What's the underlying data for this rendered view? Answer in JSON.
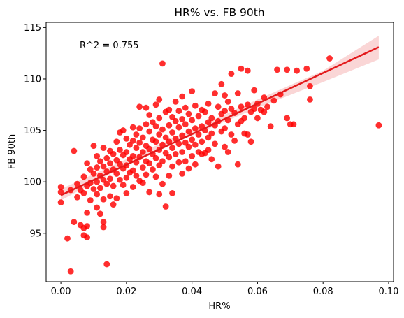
{
  "chart_data": {
    "type": "scatter",
    "title": "HR% vs. FB 90th",
    "xlabel": "HR%",
    "ylabel": "FB 90th",
    "annotation": "R^2 = 0.755",
    "xlim": [
      -0.0045,
      0.1015
    ],
    "ylim": [
      90.3,
      115.5
    ],
    "xticks": [
      0.0,
      0.02,
      0.04,
      0.06,
      0.08,
      0.1
    ],
    "xtick_labels": [
      "0.00",
      "0.02",
      "0.04",
      "0.06",
      "0.08",
      "0.10"
    ],
    "yticks": [
      95,
      100,
      105,
      110,
      115
    ],
    "ytick_labels": [
      "95",
      "100",
      "105",
      "110",
      "115"
    ],
    "grid": false,
    "point_color": "#ff0000",
    "regression_line": {
      "x": [
        0.0,
        0.097
      ],
      "y": [
        98.7,
        113.1
      ],
      "color": "#e31a1c"
    },
    "confidence_band": {
      "x": [
        0.0,
        0.02,
        0.04,
        0.06,
        0.08,
        0.097
      ],
      "lower": [
        98.2,
        101.6,
        104.5,
        107.2,
        109.7,
        111.9
      ],
      "upper": [
        99.3,
        102.2,
        105.1,
        108.0,
        110.8,
        114.2
      ]
    },
    "points": [
      [
        0.0,
        99.5
      ],
      [
        0.0,
        99.0
      ],
      [
        0.0,
        98.0
      ],
      [
        0.002,
        94.5
      ],
      [
        0.003,
        91.3
      ],
      [
        0.003,
        99.2
      ],
      [
        0.004,
        103.0
      ],
      [
        0.004,
        96.1
      ],
      [
        0.005,
        99.8
      ],
      [
        0.005,
        98.5
      ],
      [
        0.006,
        95.8
      ],
      [
        0.006,
        99.2
      ],
      [
        0.007,
        100.5
      ],
      [
        0.007,
        98.9
      ],
      [
        0.007,
        95.5
      ],
      [
        0.007,
        94.8
      ],
      [
        0.008,
        101.8
      ],
      [
        0.008,
        99.6
      ],
      [
        0.008,
        97.0
      ],
      [
        0.008,
        95.7
      ],
      [
        0.008,
        94.6
      ],
      [
        0.009,
        101.2
      ],
      [
        0.009,
        99.9
      ],
      [
        0.009,
        98.2
      ],
      [
        0.01,
        103.5
      ],
      [
        0.01,
        100.8
      ],
      [
        0.01,
        99.3
      ],
      [
        0.011,
        102.5
      ],
      [
        0.011,
        101.4
      ],
      [
        0.011,
        100.0
      ],
      [
        0.011,
        98.8
      ],
      [
        0.011,
        97.5
      ],
      [
        0.012,
        102.0
      ],
      [
        0.012,
        100.6
      ],
      [
        0.012,
        99.4
      ],
      [
        0.012,
        96.9
      ],
      [
        0.013,
        103.3
      ],
      [
        0.013,
        101.5
      ],
      [
        0.013,
        100.2
      ],
      [
        0.013,
        98.3
      ],
      [
        0.013,
        96.1
      ],
      [
        0.013,
        95.6
      ],
      [
        0.014,
        102.3
      ],
      [
        0.014,
        101.0
      ],
      [
        0.014,
        99.8
      ],
      [
        0.014,
        92.0
      ],
      [
        0.015,
        103.0
      ],
      [
        0.015,
        101.8
      ],
      [
        0.015,
        100.3
      ],
      [
        0.015,
        98.6
      ],
      [
        0.016,
        102.7
      ],
      [
        0.016,
        101.2
      ],
      [
        0.016,
        99.6
      ],
      [
        0.016,
        97.8
      ],
      [
        0.017,
        103.9
      ],
      [
        0.017,
        102.1
      ],
      [
        0.017,
        100.8
      ],
      [
        0.017,
        98.4
      ],
      [
        0.018,
        104.8
      ],
      [
        0.018,
        103.1
      ],
      [
        0.018,
        101.7
      ],
      [
        0.018,
        100.2
      ],
      [
        0.019,
        105.0
      ],
      [
        0.019,
        102.6
      ],
      [
        0.019,
        101.3
      ],
      [
        0.019,
        99.7
      ],
      [
        0.02,
        104.2
      ],
      [
        0.02,
        102.9
      ],
      [
        0.02,
        101.6
      ],
      [
        0.02,
        100.4
      ],
      [
        0.02,
        98.9
      ],
      [
        0.021,
        103.6
      ],
      [
        0.021,
        102.2
      ],
      [
        0.021,
        100.9
      ],
      [
        0.022,
        105.3
      ],
      [
        0.022,
        104.0
      ],
      [
        0.022,
        102.5
      ],
      [
        0.022,
        101.1
      ],
      [
        0.022,
        99.5
      ],
      [
        0.023,
        104.6
      ],
      [
        0.023,
        103.3
      ],
      [
        0.023,
        101.9
      ],
      [
        0.023,
        100.6
      ],
      [
        0.024,
        107.3
      ],
      [
        0.024,
        105.2
      ],
      [
        0.024,
        103.8
      ],
      [
        0.024,
        102.4
      ],
      [
        0.024,
        100.1
      ],
      [
        0.025,
        104.3
      ],
      [
        0.025,
        102.9
      ],
      [
        0.025,
        101.4
      ],
      [
        0.025,
        99.9
      ],
      [
        0.026,
        107.2
      ],
      [
        0.026,
        105.6
      ],
      [
        0.026,
        103.5
      ],
      [
        0.026,
        102.0
      ],
      [
        0.026,
        100.7
      ],
      [
        0.027,
        106.5
      ],
      [
        0.027,
        104.9
      ],
      [
        0.027,
        103.2
      ],
      [
        0.027,
        101.8
      ],
      [
        0.027,
        99.0
      ],
      [
        0.028,
        105.8
      ],
      [
        0.028,
        104.1
      ],
      [
        0.028,
        102.7
      ],
      [
        0.028,
        101.2
      ],
      [
        0.029,
        107.5
      ],
      [
        0.029,
        105.4
      ],
      [
        0.029,
        103.9
      ],
      [
        0.029,
        102.3
      ],
      [
        0.029,
        100.5
      ],
      [
        0.03,
        108.0
      ],
      [
        0.03,
        106.2
      ],
      [
        0.03,
        104.6
      ],
      [
        0.03,
        103.1
      ],
      [
        0.03,
        101.6
      ],
      [
        0.03,
        98.8
      ],
      [
        0.031,
        111.5
      ],
      [
        0.031,
        105.1
      ],
      [
        0.031,
        103.6
      ],
      [
        0.031,
        102.0
      ],
      [
        0.031,
        99.8
      ],
      [
        0.032,
        106.8
      ],
      [
        0.032,
        104.3
      ],
      [
        0.032,
        102.8
      ],
      [
        0.032,
        97.6
      ],
      [
        0.033,
        107.0
      ],
      [
        0.033,
        105.5
      ],
      [
        0.033,
        103.9
      ],
      [
        0.033,
        102.4
      ],
      [
        0.033,
        100.6
      ],
      [
        0.034,
        106.3
      ],
      [
        0.034,
        104.8
      ],
      [
        0.034,
        103.3
      ],
      [
        0.034,
        101.5
      ],
      [
        0.034,
        98.9
      ],
      [
        0.035,
        107.8
      ],
      [
        0.035,
        105.9
      ],
      [
        0.035,
        104.2
      ],
      [
        0.035,
        102.7
      ],
      [
        0.036,
        106.9
      ],
      [
        0.036,
        105.3
      ],
      [
        0.036,
        103.7
      ],
      [
        0.036,
        101.9
      ],
      [
        0.037,
        108.3
      ],
      [
        0.037,
        106.1
      ],
      [
        0.037,
        104.5
      ],
      [
        0.037,
        102.9
      ],
      [
        0.037,
        100.8
      ],
      [
        0.038,
        107.2
      ],
      [
        0.038,
        105.6
      ],
      [
        0.038,
        103.8
      ],
      [
        0.038,
        102.0
      ],
      [
        0.039,
        106.6
      ],
      [
        0.039,
        104.9
      ],
      [
        0.039,
        103.4
      ],
      [
        0.039,
        101.3
      ],
      [
        0.04,
        108.8
      ],
      [
        0.04,
        106.0
      ],
      [
        0.04,
        104.1
      ],
      [
        0.04,
        102.5
      ],
      [
        0.041,
        107.4
      ],
      [
        0.041,
        105.2
      ],
      [
        0.041,
        103.6
      ],
      [
        0.041,
        101.7
      ],
      [
        0.042,
        106.4
      ],
      [
        0.042,
        104.6
      ],
      [
        0.042,
        102.9
      ],
      [
        0.043,
        107.0
      ],
      [
        0.043,
        105.4
      ],
      [
        0.043,
        103.9
      ],
      [
        0.043,
        102.7
      ],
      [
        0.044,
        106.8
      ],
      [
        0.044,
        105.0
      ],
      [
        0.044,
        102.8
      ],
      [
        0.045,
        107.6
      ],
      [
        0.045,
        105.8
      ],
      [
        0.045,
        104.3
      ],
      [
        0.045,
        103.1
      ],
      [
        0.046,
        106.2
      ],
      [
        0.046,
        104.7
      ],
      [
        0.046,
        102.2
      ],
      [
        0.047,
        108.6
      ],
      [
        0.047,
        105.5
      ],
      [
        0.047,
        103.7
      ],
      [
        0.048,
        107.3
      ],
      [
        0.048,
        105.9
      ],
      [
        0.048,
        101.5
      ],
      [
        0.049,
        109.5
      ],
      [
        0.049,
        106.6
      ],
      [
        0.049,
        104.9
      ],
      [
        0.05,
        108.4
      ],
      [
        0.05,
        106.9
      ],
      [
        0.05,
        105.2
      ],
      [
        0.05,
        103.4
      ],
      [
        0.051,
        107.8
      ],
      [
        0.051,
        106.0
      ],
      [
        0.051,
        102.9
      ],
      [
        0.052,
        110.5
      ],
      [
        0.052,
        107.1
      ],
      [
        0.052,
        104.6
      ],
      [
        0.053,
        106.7
      ],
      [
        0.053,
        104.0
      ],
      [
        0.054,
        108.6
      ],
      [
        0.054,
        105.6
      ],
      [
        0.054,
        101.7
      ],
      [
        0.055,
        111.0
      ],
      [
        0.055,
        107.3
      ],
      [
        0.055,
        105.9
      ],
      [
        0.056,
        106.2
      ],
      [
        0.056,
        104.7
      ],
      [
        0.057,
        110.8
      ],
      [
        0.057,
        107.5
      ],
      [
        0.057,
        104.6
      ],
      [
        0.058,
        106.8
      ],
      [
        0.058,
        103.9
      ],
      [
        0.059,
        108.9
      ],
      [
        0.059,
        107.1
      ],
      [
        0.06,
        107.6
      ],
      [
        0.06,
        106.2
      ],
      [
        0.061,
        107.0
      ],
      [
        0.062,
        108.2
      ],
      [
        0.062,
        106.8
      ],
      [
        0.063,
        107.3
      ],
      [
        0.064,
        105.4
      ],
      [
        0.065,
        107.9
      ],
      [
        0.066,
        110.9
      ],
      [
        0.067,
        108.5
      ],
      [
        0.069,
        110.9
      ],
      [
        0.069,
        106.2
      ],
      [
        0.07,
        105.6
      ],
      [
        0.071,
        105.6
      ],
      [
        0.072,
        110.8
      ],
      [
        0.075,
        111.0
      ],
      [
        0.076,
        109.3
      ],
      [
        0.076,
        108.0
      ],
      [
        0.082,
        112.0
      ],
      [
        0.097,
        105.5
      ]
    ]
  }
}
